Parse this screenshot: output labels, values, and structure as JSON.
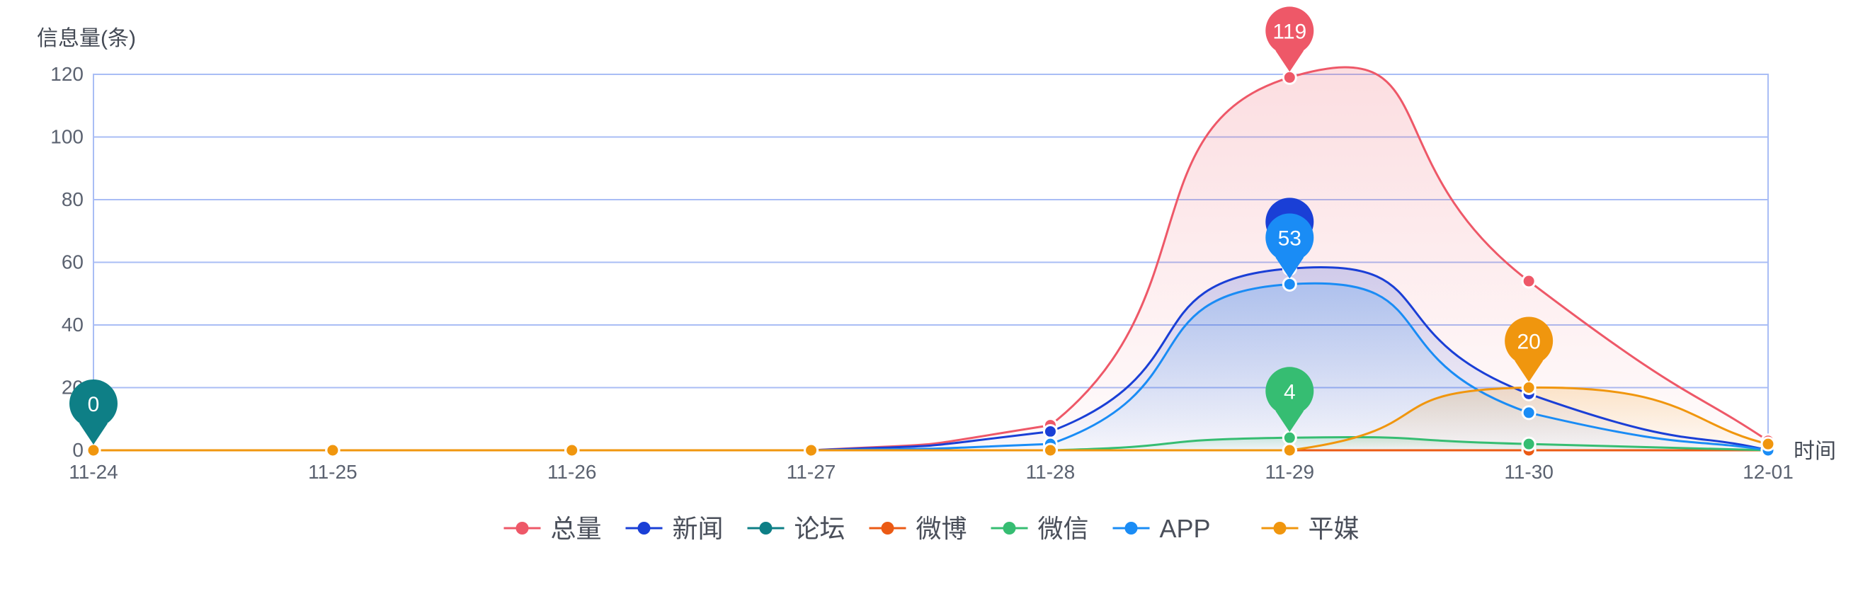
{
  "chart_data": {
    "type": "line",
    "yname": "信息量(条)",
    "xname": "时间",
    "categories": [
      "11-24",
      "11-25",
      "11-26",
      "11-27",
      "11-28",
      "11-29",
      "11-30",
      "12-01"
    ],
    "ylim": [
      0,
      120
    ],
    "yticks": [
      0,
      20,
      40,
      60,
      80,
      100,
      120
    ],
    "grid": true,
    "legend_position": "bottom-center",
    "series": [
      {
        "name": "总量",
        "color": "#ee5868",
        "values": [
          0,
          0,
          0,
          0,
          8,
          119,
          54,
          3
        ],
        "area": true
      },
      {
        "name": "新闻",
        "color": "#1a3fd6",
        "values": [
          0,
          0,
          0,
          0,
          6,
          58,
          18,
          0
        ],
        "area": true
      },
      {
        "name": "论坛",
        "color": "#0e7f86",
        "values": [
          0,
          0,
          0,
          0,
          0,
          0,
          0,
          0
        ],
        "area": false
      },
      {
        "name": "微博",
        "color": "#eb5a14",
        "values": [
          0,
          0,
          0,
          0,
          0,
          0,
          0,
          0
        ],
        "area": false
      },
      {
        "name": "微信",
        "color": "#36bd72",
        "values": [
          0,
          0,
          0,
          0,
          0,
          4,
          2,
          0
        ],
        "area": true
      },
      {
        "name": "APP",
        "color": "#1a8cf5",
        "values": [
          0,
          0,
          0,
          0,
          2,
          53,
          12,
          0
        ],
        "area": true
      },
      {
        "name": "平媒",
        "color": "#f0960e",
        "values": [
          0,
          0,
          0,
          0,
          0,
          0,
          20,
          2
        ],
        "area": true
      }
    ],
    "markers": [
      {
        "series": 0,
        "index": 5,
        "label": "119"
      },
      {
        "series": 1,
        "index": 5,
        "label": ""
      },
      {
        "series": 5,
        "index": 5,
        "label": "53"
      },
      {
        "series": 4,
        "index": 5,
        "label": "4"
      },
      {
        "series": 6,
        "index": 6,
        "label": "20"
      },
      {
        "series": 2,
        "index": 0,
        "label": "0"
      }
    ]
  }
}
